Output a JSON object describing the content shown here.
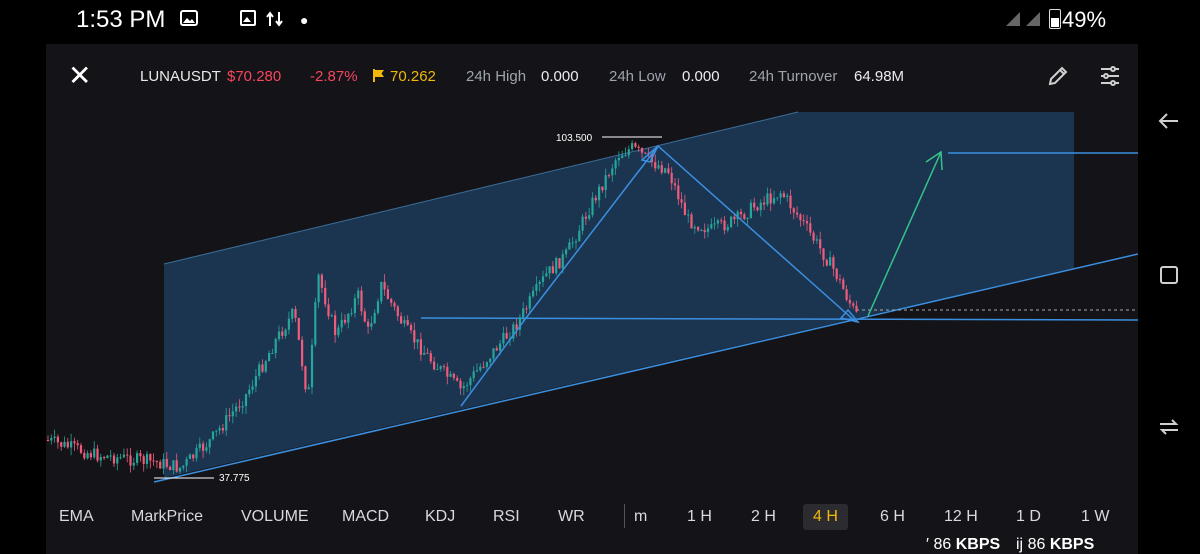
{
  "status": {
    "time": "1:53 PM",
    "battery": "49%"
  },
  "toolbar": {
    "pair": "LUNAUSDT",
    "price": "$70.280",
    "change": "-2.87%",
    "mark_price": "70.262",
    "high_label": "24h High",
    "high_value": "0.000",
    "low_label": "24h Low",
    "low_value": "0.000",
    "turnover_label": "24h Turnover",
    "turnover_value": "64.98M"
  },
  "chart": {
    "high_label": "103.500",
    "low_label": "37.775"
  },
  "indicators": {
    "items": [
      "EMA",
      "MarkPrice",
      "VOLUME",
      "MACD",
      "KDJ",
      "RSI",
      "WR"
    ]
  },
  "intervals": {
    "items": [
      "m",
      "1 H",
      "2 H",
      "4 H",
      "6 H",
      "12 H",
      "1 D",
      "1 W"
    ],
    "active": "4 H"
  },
  "network": {
    "speed1_value": "86",
    "speed1_unit": "KBPS",
    "speed2_prefix": "ij",
    "speed2_value": "86",
    "speed2_unit": "KBPS"
  },
  "colors": {
    "up": "#26a69a",
    "down": "#ef5b7a",
    "channel_fill": "#1c3b5b",
    "drawing_line": "#3b8fe0",
    "arrow": "#37c28b",
    "accent": "#f0b90b"
  },
  "icons": [
    "close-icon",
    "flag-icon",
    "pencil-icon",
    "settings-sliders-icon",
    "back-icon",
    "recents-icon",
    "home-icon"
  ]
}
